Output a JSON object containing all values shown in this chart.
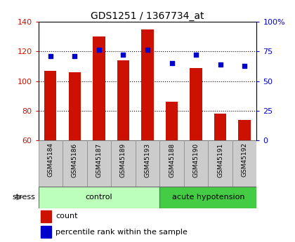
{
  "title": "GDS1251 / 1367734_at",
  "samples": [
    "GSM45184",
    "GSM45186",
    "GSM45187",
    "GSM45189",
    "GSM45193",
    "GSM45188",
    "GSM45190",
    "GSM45191",
    "GSM45192"
  ],
  "counts": [
    107,
    106,
    130,
    114,
    135,
    86,
    109,
    78,
    74
  ],
  "percentile_positions": [
    117,
    117,
    121,
    118,
    121,
    112,
    118,
    111,
    110
  ],
  "groups": [
    {
      "label": "control",
      "start": 0,
      "end": 5,
      "color": "#bbffbb"
    },
    {
      "label": "acute hypotension",
      "start": 5,
      "end": 9,
      "color": "#44cc44"
    }
  ],
  "ylim_left": [
    60,
    140
  ],
  "yticks_left": [
    60,
    80,
    100,
    120,
    140
  ],
  "ytick_labels_right": [
    "0",
    "25",
    "50",
    "75",
    "100%"
  ],
  "bar_color": "#cc1100",
  "dot_color": "#0000cc",
  "background_color": "#ffffff",
  "sample_bg_color": "#cccccc",
  "stress_label": "stress",
  "legend_count": "count",
  "legend_percentile": "percentile rank within the sample",
  "title_fontsize": 10,
  "axis_fontsize": 8,
  "sample_fontsize": 6.5,
  "group_fontsize": 8,
  "legend_fontsize": 8
}
